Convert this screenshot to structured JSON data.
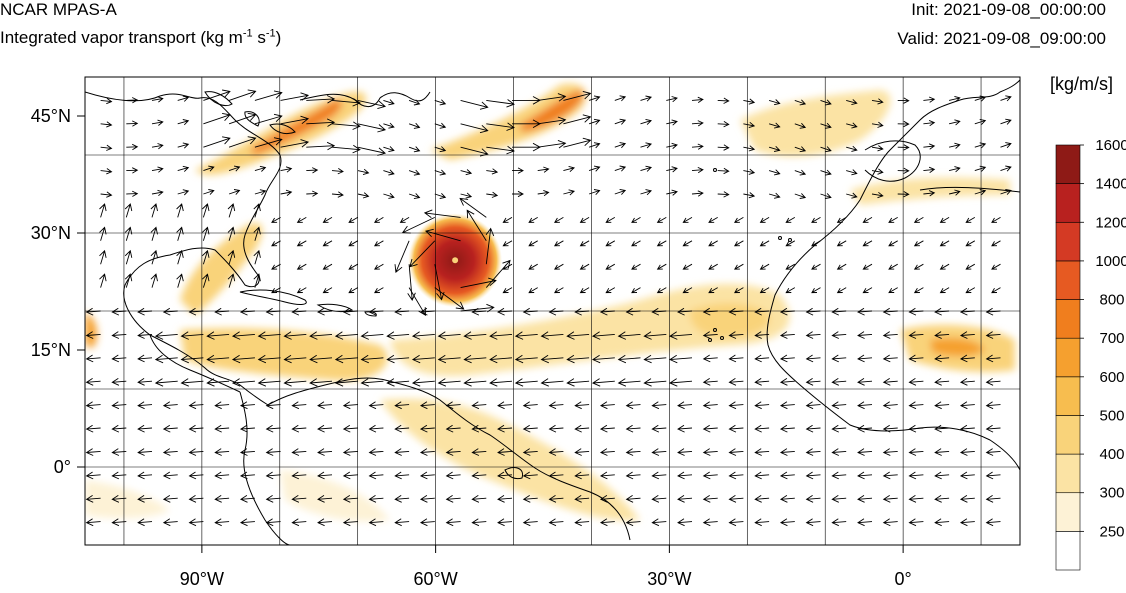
{
  "header": {
    "model": "NCAR MPAS-A",
    "field_prefix": "Integrated vapor transport (kg m",
    "field_exp1": "-1",
    "field_mid": " s",
    "field_exp2": "-1",
    "field_suffix": ")",
    "init": "Init: 2021-09-08_00:00:00",
    "valid": "Valid: 2021-09-08_09:00:00"
  },
  "map": {
    "lon_range": [
      -105,
      15
    ],
    "lat_range": [
      -10,
      50
    ],
    "lat_labels": [
      {
        "value": 45,
        "text": "45°N"
      },
      {
        "value": 30,
        "text": "30°N"
      },
      {
        "value": 15,
        "text": "15°N"
      },
      {
        "value": 0,
        "text": "0°"
      }
    ],
    "lon_labels": [
      {
        "value": -90,
        "text": "90°W"
      },
      {
        "value": -60,
        "text": "60°W"
      },
      {
        "value": -30,
        "text": "30°W"
      },
      {
        "value": 0,
        "text": "0°"
      }
    ],
    "grid_lons": [
      -100,
      -90,
      -80,
      -70,
      -60,
      -50,
      -40,
      -30,
      -20,
      -10,
      0,
      10
    ],
    "grid_lats": [
      -10,
      0,
      10,
      20,
      30,
      40,
      50
    ],
    "hurricane_center": {
      "lon": -57.5,
      "lat": 26.5
    }
  },
  "colorbar": {
    "units": "[kg/m/s]",
    "levels": [
      "250",
      "300",
      "400",
      "500",
      "600",
      "700",
      "800",
      "1000",
      "1200",
      "1400",
      "1600"
    ],
    "colors": [
      "#ffffff",
      "#fdf2d6",
      "#fbe3a4",
      "#f9d37a",
      "#f7bd4f",
      "#f5a02f",
      "#f07e1e",
      "#e65a22",
      "#d43a24",
      "#b8211f",
      "#8e1a16"
    ]
  },
  "colors": {
    "coast": "#000000",
    "grid": "#000000",
    "vector": "#000000"
  }
}
